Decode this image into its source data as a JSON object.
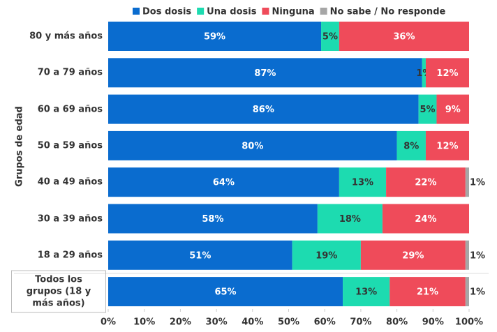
{
  "chart_data": {
    "type": "stacked-bar-horizontal",
    "y_label": "Grupos de edad",
    "categories": [
      "80 y más años",
      "70 a 79 años",
      "60 a 69 años",
      "50 a 59 años",
      "40 a 49 años",
      "30 a 39 años",
      "18 a 29 años",
      "Todos los grupos (18 y más años)"
    ],
    "series": [
      {
        "name": "Dos dosis",
        "color": "#0a6ccf",
        "values": [
          59,
          87,
          86,
          80,
          64,
          58,
          51,
          65
        ],
        "value_labels": [
          "59%",
          "87%",
          "86%",
          "80%",
          "64%",
          "58%",
          "51%",
          "65%"
        ]
      },
      {
        "name": "Una dosis",
        "color": "#1ddbb0",
        "values": [
          5,
          1,
          5,
          8,
          13,
          18,
          19,
          13
        ],
        "value_labels": [
          "5%",
          "1%",
          "5%",
          "8%",
          "13%",
          "18%",
          "19%",
          "13%"
        ]
      },
      {
        "name": "Ninguna",
        "color": "#ef4b5a",
        "values": [
          36,
          12,
          9,
          12,
          22,
          24,
          29,
          21
        ],
        "value_labels": [
          "36%",
          "12%",
          "9%",
          "12%",
          "22%",
          "24%",
          "29%",
          "21%"
        ]
      },
      {
        "name": "No sabe / No responde",
        "color": "#a6a6a6",
        "values": [
          0,
          0,
          0,
          0,
          1,
          0,
          1,
          1
        ],
        "value_labels": [
          null,
          null,
          null,
          null,
          "1%",
          null,
          "1%",
          "1%"
        ]
      }
    ],
    "xlim": [
      0,
      100
    ],
    "xticks": [
      {
        "value": 0,
        "label": "0%"
      },
      {
        "value": 10,
        "label": "10%"
      },
      {
        "value": 20,
        "label": "20%"
      },
      {
        "value": 30,
        "label": "30%"
      },
      {
        "value": 40,
        "label": "40%"
      },
      {
        "value": 50,
        "label": "50%"
      },
      {
        "value": 60,
        "label": "60%"
      },
      {
        "value": 70,
        "label": "70%"
      },
      {
        "value": 80,
        "label": "80%"
      },
      {
        "value": 90,
        "label": "90%"
      },
      {
        "value": 100,
        "label": "100%"
      }
    ]
  }
}
